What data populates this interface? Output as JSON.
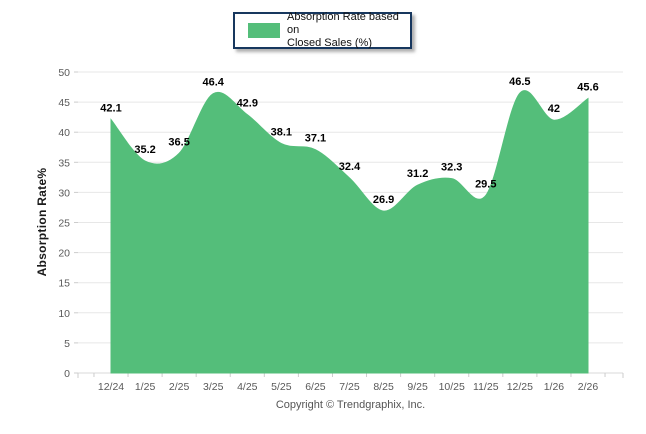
{
  "legend": {
    "line1": "Absorption Rate based on",
    "line2": "Closed Sales (%)"
  },
  "axis": {
    "y_title": "Absorption Rate%"
  },
  "footer": {
    "copyright": "Copyright © Trendgraphix, Inc."
  },
  "colors": {
    "area": "#54be7a",
    "legend_border": "#17375e",
    "grid": "#e7e7e7",
    "baseline": "#d9d9d9",
    "tick": "#cccccc",
    "axis_text": "#595959",
    "data_label": "#000000"
  },
  "chart_data": {
    "type": "area",
    "title": "",
    "legend_entries": [
      "Absorption Rate based on Closed Sales (%)"
    ],
    "legend_position": "top-center",
    "xlabel": "",
    "ylabel": "Absorption Rate%",
    "ylim": [
      0,
      50
    ],
    "ytick_step": 5,
    "grid": true,
    "smooth": true,
    "categories": [
      "12/24",
      "1/25",
      "2/25",
      "3/25",
      "4/25",
      "5/25",
      "6/25",
      "7/25",
      "8/25",
      "9/25",
      "10/25",
      "11/25",
      "12/25",
      "1/26",
      "2/26"
    ],
    "values": [
      42.1,
      35.2,
      36.5,
      46.4,
      42.9,
      38.1,
      37.1,
      32.4,
      26.9,
      31.2,
      32.3,
      29.5,
      46.5,
      42,
      45.6
    ]
  }
}
